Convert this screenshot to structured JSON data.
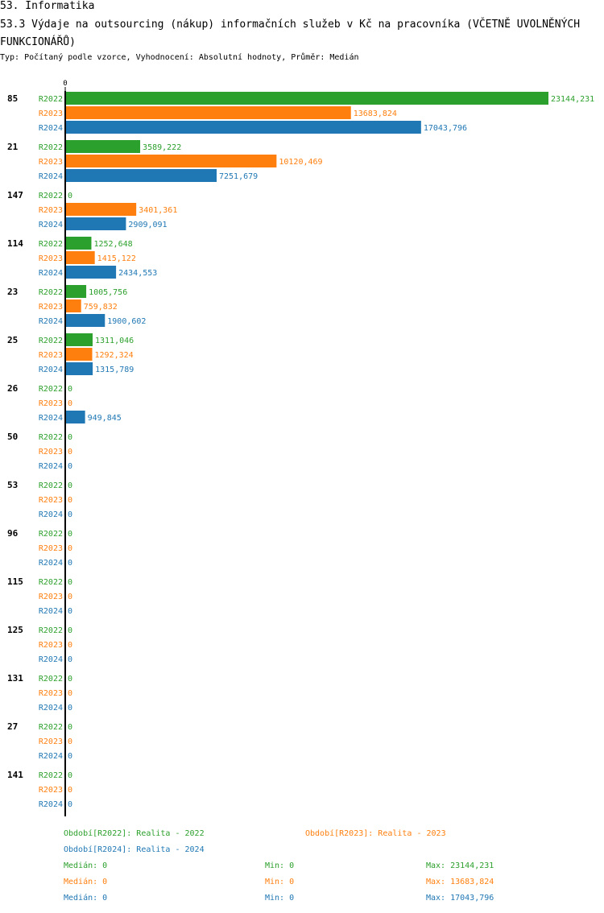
{
  "header": {
    "section": "53. Informatika",
    "title": "53.3 Výdaje na outsourcing (nákup) informačních služeb v Kč na pracovníka (VČETNĚ UVOLNĚNÝCH FUNKCIONÁŘŮ)",
    "subtitle": "Typ: Počítaný podle vzorce, Vyhodnocení: Absolutní hodnoty, Průměr: Medián"
  },
  "chart_data": {
    "type": "bar",
    "orientation": "horizontal",
    "xlim": [
      0,
      23144.231
    ],
    "zero_tick": "0",
    "series_names": [
      "R2022",
      "R2023",
      "R2024"
    ],
    "colors": {
      "R2022": "#2ca02c",
      "R2023": "#ff7f0e",
      "R2024": "#1f77b4"
    },
    "categories": [
      "85",
      "21",
      "147",
      "114",
      "23",
      "25",
      "26",
      "50",
      "53",
      "96",
      "115",
      "125",
      "131",
      "27",
      "141"
    ],
    "series": [
      {
        "name": "R2022",
        "values": [
          23144.231,
          3589.222,
          0,
          1252.648,
          1005.756,
          1311.046,
          0,
          0,
          0,
          0,
          0,
          0,
          0,
          0,
          0
        ],
        "labels": [
          "23144,231",
          "3589,222",
          "0",
          "1252,648",
          "1005,756",
          "1311,046",
          "0",
          "0",
          "0",
          "0",
          "0",
          "0",
          "0",
          "0",
          "0"
        ]
      },
      {
        "name": "R2023",
        "values": [
          13683.824,
          10120.469,
          3401.361,
          1415.122,
          759.832,
          1292.324,
          0,
          0,
          0,
          0,
          0,
          0,
          0,
          0,
          0
        ],
        "labels": [
          "13683,824",
          "10120,469",
          "3401,361",
          "1415,122",
          "759,832",
          "1292,324",
          "0",
          "0",
          "0",
          "0",
          "0",
          "0",
          "0",
          "0",
          "0"
        ]
      },
      {
        "name": "R2024",
        "values": [
          17043.796,
          7251.679,
          2909.091,
          2434.553,
          1900.602,
          1315.789,
          949.845,
          0,
          0,
          0,
          0,
          0,
          0,
          0,
          0
        ],
        "labels": [
          "17043,796",
          "7251,679",
          "2909,091",
          "2434,553",
          "1900,602",
          "1315,789",
          "949,845",
          "0",
          "0",
          "0",
          "0",
          "0",
          "0",
          "0",
          "0"
        ]
      }
    ],
    "legend": [
      {
        "text": "Období[R2022]: Realita - 2022",
        "series": "R2022"
      },
      {
        "text": "Období[R2023]: Realita - 2023",
        "series": "R2023"
      },
      {
        "text": "Období[R2024]: Realita - 2024",
        "series": "R2024"
      }
    ],
    "stats": [
      {
        "series": "R2022",
        "median": "Medián: 0",
        "min": "Min: 0",
        "max": "Max: 23144,231"
      },
      {
        "series": "R2023",
        "median": "Medián: 0",
        "min": "Min: 0",
        "max": "Max: 13683,824"
      },
      {
        "series": "R2024",
        "median": "Medián: 0",
        "min": "Min: 0",
        "max": "Max: 17043,796"
      }
    ]
  }
}
